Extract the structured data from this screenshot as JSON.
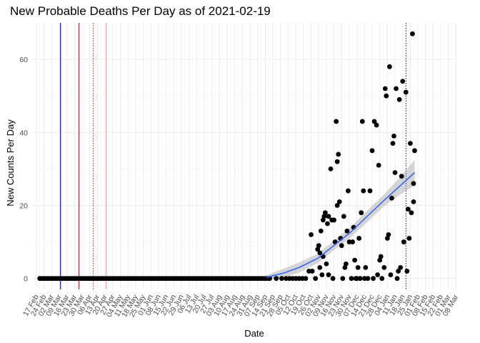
{
  "chart_data": {
    "type": "scatter",
    "title": "New Probable Deaths Per Day as of 2021-02-19",
    "xlabel": "Date",
    "ylabel": "New Counts Per Day",
    "x_range": [
      "2020-02-13",
      "2021-03-09"
    ],
    "ylim": [
      -3,
      70
    ],
    "y_ticks": [
      0,
      20,
      40,
      60
    ],
    "x_ticks": [
      "2020-02-17",
      "2020-02-24",
      "2020-03-02",
      "2020-03-09",
      "2020-03-16",
      "2020-03-23",
      "2020-03-30",
      "2020-04-06",
      "2020-04-13",
      "2020-04-20",
      "2020-04-27",
      "2020-05-04",
      "2020-05-11",
      "2020-05-18",
      "2020-05-25",
      "2020-06-01",
      "2020-06-08",
      "2020-06-15",
      "2020-06-22",
      "2020-06-29",
      "2020-07-06",
      "2020-07-13",
      "2020-07-20",
      "2020-07-27",
      "2020-08-03",
      "2020-08-10",
      "2020-08-17",
      "2020-08-24",
      "2020-08-31",
      "2020-09-07",
      "2020-09-14",
      "2020-09-21",
      "2020-09-28",
      "2020-10-05",
      "2020-10-12",
      "2020-10-19",
      "2020-10-26",
      "2020-11-02",
      "2020-11-09",
      "2020-11-16",
      "2020-11-23",
      "2020-11-30",
      "2020-12-07",
      "2020-12-14",
      "2020-12-21",
      "2020-12-28",
      "2021-01-04",
      "2021-01-11",
      "2021-01-18",
      "2021-01-25",
      "2021-02-01",
      "2021-02-08",
      "2021-02-15",
      "2021-02-22",
      "2021-03-01",
      "2021-03-08"
    ],
    "x_tick_labels": [
      "17 Feb",
      "24 Feb",
      "02 Mar",
      "09 Mar",
      "16 Mar",
      "23 Mar",
      "30 Mar",
      "06 Apr",
      "13 Apr",
      "20 Apr",
      "27 Apr",
      "04 May",
      "11 May",
      "18 May",
      "25 May",
      "01 Jun",
      "08 Jun",
      "15 Jun",
      "22 Jun",
      "29 Jun",
      "06 Jul",
      "13 Jul",
      "20 Jul",
      "27 Jul",
      "03 Aug",
      "10 Aug",
      "17 Aug",
      "24 Aug",
      "31 Aug",
      "07 Sep",
      "14 Sep",
      "21 Sep",
      "28 Sep",
      "05 Oct",
      "12 Oct",
      "19 Oct",
      "26 Oct",
      "02 Nov",
      "09 Nov",
      "16 Nov",
      "23 Nov",
      "30 Nov",
      "07 Dec",
      "14 Dec",
      "21 Dec",
      "28 Dec",
      "04 Jan",
      "11 Jan",
      "18 Jan",
      "25 Jan",
      "01 Feb",
      "08 Feb",
      "15 Feb",
      "22 Feb",
      "01 Mar",
      "08 Mar"
    ],
    "grid": true,
    "vertical_lines": [
      {
        "x": "2020-03-10",
        "color": "#0000ff",
        "style": "solid"
      },
      {
        "x": "2020-03-27",
        "color": "#b22222",
        "style": "solid"
      },
      {
        "x": "2020-04-09",
        "color": "#cd2626",
        "style": "dotted"
      },
      {
        "x": "2020-04-21",
        "color": "#e8a0a0",
        "style": "solid"
      },
      {
        "x": "2021-01-21",
        "color": "#000080",
        "style": "dotted"
      }
    ],
    "points": [
      [
        "2020-02-20",
        0
      ],
      [
        "2020-09-18",
        0
      ],
      [
        "2020-09-24",
        0
      ],
      [
        "2020-09-29",
        0
      ],
      [
        "2020-10-03",
        0
      ],
      [
        "2020-10-06",
        0
      ],
      [
        "2020-10-09",
        0
      ],
      [
        "2020-10-12",
        0
      ],
      [
        "2020-10-15",
        0
      ],
      [
        "2020-10-18",
        0
      ],
      [
        "2020-10-21",
        0
      ],
      [
        "2020-10-24",
        2
      ],
      [
        "2020-10-26",
        12
      ],
      [
        "2020-10-27",
        2
      ],
      [
        "2020-10-30",
        0
      ],
      [
        "2020-11-01",
        8
      ],
      [
        "2020-11-02",
        9
      ],
      [
        "2020-11-03",
        7
      ],
      [
        "2020-11-03",
        3
      ],
      [
        "2020-11-04",
        13
      ],
      [
        "2020-11-05",
        1
      ],
      [
        "2020-11-06",
        6
      ],
      [
        "2020-11-06",
        16
      ],
      [
        "2020-11-07",
        17
      ],
      [
        "2020-11-08",
        18
      ],
      [
        "2020-11-09",
        4
      ],
      [
        "2020-11-10",
        15
      ],
      [
        "2020-11-11",
        17
      ],
      [
        "2020-11-11",
        1
      ],
      [
        "2020-11-13",
        30
      ],
      [
        "2020-11-14",
        16
      ],
      [
        "2020-11-15",
        0
      ],
      [
        "2020-11-16",
        16
      ],
      [
        "2020-11-17",
        10
      ],
      [
        "2020-11-18",
        43
      ],
      [
        "2020-11-19",
        32
      ],
      [
        "2020-11-19",
        20
      ],
      [
        "2020-11-20",
        34
      ],
      [
        "2020-11-21",
        21
      ],
      [
        "2020-11-22",
        11
      ],
      [
        "2020-11-23",
        9
      ],
      [
        "2020-11-24",
        0
      ],
      [
        "2020-11-25",
        17
      ],
      [
        "2020-11-26",
        3
      ],
      [
        "2020-11-27",
        4
      ],
      [
        "2020-11-28",
        13
      ],
      [
        "2020-11-29",
        24
      ],
      [
        "2020-11-30",
        10
      ],
      [
        "2020-12-02",
        0
      ],
      [
        "2020-12-03",
        10
      ],
      [
        "2020-12-04",
        14
      ],
      [
        "2020-12-05",
        5
      ],
      [
        "2020-12-06",
        0
      ],
      [
        "2020-12-07",
        0
      ],
      [
        "2020-12-08",
        3
      ],
      [
        "2020-12-09",
        11
      ],
      [
        "2020-12-10",
        0
      ],
      [
        "2020-12-11",
        18
      ],
      [
        "2020-12-12",
        43
      ],
      [
        "2020-12-13",
        24
      ],
      [
        "2020-12-14",
        0
      ],
      [
        "2020-12-15",
        3
      ],
      [
        "2020-12-17",
        0
      ],
      [
        "2020-12-19",
        24
      ],
      [
        "2020-12-21",
        35
      ],
      [
        "2020-12-22",
        0
      ],
      [
        "2020-12-23",
        43
      ],
      [
        "2020-12-25",
        42
      ],
      [
        "2020-12-26",
        1
      ],
      [
        "2020-12-27",
        31
      ],
      [
        "2020-12-28",
        5
      ],
      [
        "2020-12-29",
        6
      ],
      [
        "2020-12-30",
        0
      ],
      [
        "2021-01-01",
        3
      ],
      [
        "2021-01-02",
        52
      ],
      [
        "2021-01-03",
        50
      ],
      [
        "2021-01-04",
        11
      ],
      [
        "2021-01-05",
        12
      ],
      [
        "2021-01-06",
        58
      ],
      [
        "2021-01-07",
        1
      ],
      [
        "2021-01-08",
        22
      ],
      [
        "2021-01-09",
        37
      ],
      [
        "2021-01-10",
        39
      ],
      [
        "2021-01-11",
        29
      ],
      [
        "2021-01-12",
        52
      ],
      [
        "2021-01-13",
        0
      ],
      [
        "2021-01-14",
        2
      ],
      [
        "2021-01-15",
        49
      ],
      [
        "2021-01-16",
        3
      ],
      [
        "2021-01-17",
        28
      ],
      [
        "2021-01-18",
        54
      ],
      [
        "2021-01-19",
        10
      ],
      [
        "2021-01-21",
        51
      ],
      [
        "2021-01-22",
        2
      ],
      [
        "2021-01-23",
        19
      ],
      [
        "2021-01-24",
        11
      ],
      [
        "2021-01-25",
        37
      ],
      [
        "2021-01-26",
        18
      ],
      [
        "2021-01-27",
        67
      ],
      [
        "2021-01-28",
        21
      ],
      [
        "2021-01-28",
        26
      ],
      [
        "2021-01-29",
        35
      ]
    ],
    "smooth": {
      "color": "#3366ff",
      "x": [
        "2020-09-15",
        "2020-10-01",
        "2020-10-15",
        "2020-11-01",
        "2020-11-15",
        "2020-12-01",
        "2020-12-15",
        "2021-01-01",
        "2021-01-15",
        "2021-01-29"
      ],
      "y": [
        0.3,
        1.5,
        3.0,
        5.5,
        8.8,
        12.6,
        16.6,
        21.4,
        25.2,
        29.0
      ],
      "band_lower": [
        -0.3,
        0.3,
        1.6,
        4.2,
        7.5,
        11.2,
        15.0,
        19.8,
        22.8,
        25.5
      ],
      "band_upper": [
        0.9,
        2.7,
        4.4,
        6.8,
        10.1,
        14.0,
        18.2,
        23.0,
        27.6,
        32.5
      ]
    }
  }
}
